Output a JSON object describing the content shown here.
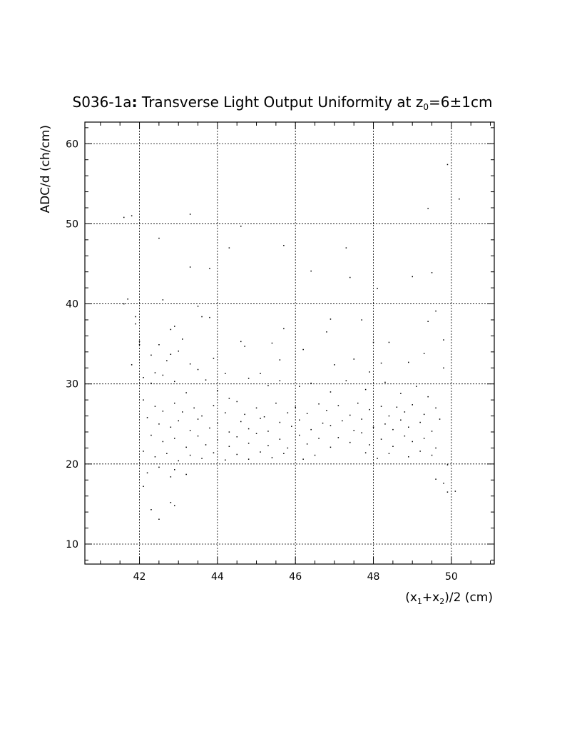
{
  "chart_data": {
    "type": "scatter",
    "title": "S036-1a: Transverse Light Output Uniformity at z0=6±1cm",
    "title_parts": {
      "prefix": "S036-1a",
      "colon": ":",
      "text": " Transverse Light Output Uniformity at z",
      "sub": "0",
      "suffix": "=6±1cm"
    },
    "xlabel": "(x1+x2)/2 (cm)",
    "xlabel_parts": {
      "open": "(x",
      "sub1": "1",
      "plus": "+x",
      "sub2": "2",
      "close": ")/2 (cm)"
    },
    "ylabel": "ADC/d (ch/cm)",
    "xlim": [
      40.6,
      51.1
    ],
    "ylim": [
      7.5,
      62.7
    ],
    "x_ticks": [
      42,
      44,
      46,
      48,
      50
    ],
    "y_ticks": [
      10,
      20,
      30,
      40,
      50,
      60
    ],
    "x_tick_labels": [
      "42",
      "44",
      "46",
      "48",
      "50"
    ],
    "y_tick_labels": [
      "10",
      "20",
      "30",
      "40",
      "50",
      "60"
    ],
    "grid": true,
    "points": [
      [
        41.6,
        50.8
      ],
      [
        41.8,
        51.0
      ],
      [
        43.3,
        51.2
      ],
      [
        42.5,
        48.2
      ],
      [
        44.6,
        49.7
      ],
      [
        45.7,
        47.3
      ],
      [
        47.3,
        47.0
      ],
      [
        44.3,
        47.0
      ],
      [
        43.3,
        44.6
      ],
      [
        43.8,
        44.4
      ],
      [
        47.4,
        43.3
      ],
      [
        49.5,
        43.9
      ],
      [
        49.0,
        43.4
      ],
      [
        48.1,
        41.9
      ],
      [
        41.6,
        40.0
      ],
      [
        41.7,
        40.6
      ],
      [
        42.6,
        40.5
      ],
      [
        43.5,
        39.7
      ],
      [
        41.9,
        38.4
      ],
      [
        43.6,
        38.4
      ],
      [
        43.8,
        38.3
      ],
      [
        46.9,
        38.1
      ],
      [
        47.7,
        38.0
      ],
      [
        49.6,
        39.1
      ],
      [
        49.4,
        37.8
      ],
      [
        41.9,
        37.5
      ],
      [
        42.8,
        36.8
      ],
      [
        42.9,
        37.2
      ],
      [
        45.7,
        36.9
      ],
      [
        49.8,
        35.5
      ],
      [
        42.0,
        35.3
      ],
      [
        44.6,
        35.3
      ],
      [
        42.5,
        34.9
      ],
      [
        43.1,
        35.6
      ],
      [
        45.4,
        35.1
      ],
      [
        46.8,
        36.5
      ],
      [
        48.0,
        35.2
      ],
      [
        48.4,
        35.2
      ],
      [
        43.0,
        34.1
      ],
      [
        42.8,
        33.7
      ],
      [
        44.7,
        34.7
      ],
      [
        42.0,
        34.9
      ],
      [
        41.8,
        32.4
      ],
      [
        42.3,
        33.6
      ],
      [
        42.4,
        31.4
      ],
      [
        42.7,
        32.9
      ],
      [
        43.3,
        32.5
      ],
      [
        43.5,
        31.8
      ],
      [
        43.9,
        33.2
      ],
      [
        44.2,
        31.3
      ],
      [
        45.1,
        31.3
      ],
      [
        45.6,
        33.0
      ],
      [
        46.2,
        34.3
      ],
      [
        47.0,
        32.4
      ],
      [
        47.5,
        33.1
      ],
      [
        47.9,
        31.5
      ],
      [
        48.2,
        32.6
      ],
      [
        48.9,
        32.7
      ],
      [
        49.3,
        33.8
      ],
      [
        49.8,
        32.0
      ],
      [
        42.1,
        30.8
      ],
      [
        42.3,
        30.1
      ],
      [
        42.6,
        31.1
      ],
      [
        42.9,
        30.3
      ],
      [
        43.2,
        28.9
      ],
      [
        43.7,
        30.5
      ],
      [
        44.0,
        29.2
      ],
      [
        44.3,
        28.2
      ],
      [
        44.8,
        30.7
      ],
      [
        45.3,
        29.8
      ],
      [
        45.6,
        30.4
      ],
      [
        46.1,
        29.7
      ],
      [
        46.4,
        30.1
      ],
      [
        46.9,
        29.0
      ],
      [
        47.3,
        30.4
      ],
      [
        47.8,
        29.3
      ],
      [
        48.3,
        30.2
      ],
      [
        48.7,
        28.8
      ],
      [
        49.1,
        29.7
      ],
      [
        49.4,
        28.4
      ],
      [
        42.1,
        28.0
      ],
      [
        42.4,
        27.2
      ],
      [
        42.6,
        26.6
      ],
      [
        42.9,
        27.6
      ],
      [
        43.1,
        26.5
      ],
      [
        43.4,
        27.0
      ],
      [
        43.6,
        26.0
      ],
      [
        43.9,
        27.3
      ],
      [
        44.2,
        26.4
      ],
      [
        44.5,
        27.8
      ],
      [
        44.7,
        26.2
      ],
      [
        45.0,
        27.0
      ],
      [
        45.2,
        25.9
      ],
      [
        45.5,
        27.6
      ],
      [
        45.8,
        26.4
      ],
      [
        46.0,
        27.1
      ],
      [
        46.3,
        26.3
      ],
      [
        46.6,
        27.5
      ],
      [
        46.8,
        26.7
      ],
      [
        47.1,
        27.3
      ],
      [
        47.4,
        26.1
      ],
      [
        47.6,
        27.6
      ],
      [
        47.9,
        26.8
      ],
      [
        48.2,
        27.2
      ],
      [
        48.4,
        26.0
      ],
      [
        48.6,
        27.1
      ],
      [
        48.8,
        26.5
      ],
      [
        49.0,
        27.4
      ],
      [
        49.3,
        26.2
      ],
      [
        49.6,
        27.0
      ],
      [
        42.2,
        25.8
      ],
      [
        42.5,
        25.0
      ],
      [
        42.8,
        24.6
      ],
      [
        43.0,
        25.4
      ],
      [
        43.3,
        24.2
      ],
      [
        43.5,
        25.6
      ],
      [
        43.8,
        24.5
      ],
      [
        44.0,
        25.1
      ],
      [
        44.3,
        24.0
      ],
      [
        44.6,
        25.3
      ],
      [
        44.8,
        24.4
      ],
      [
        45.1,
        25.7
      ],
      [
        45.3,
        24.1
      ],
      [
        45.6,
        25.2
      ],
      [
        45.9,
        24.7
      ],
      [
        46.1,
        25.5
      ],
      [
        46.4,
        24.3
      ],
      [
        46.7,
        25.1
      ],
      [
        46.9,
        24.8
      ],
      [
        47.2,
        25.4
      ],
      [
        47.5,
        24.2
      ],
      [
        47.7,
        25.6
      ],
      [
        48.0,
        24.6
      ],
      [
        48.3,
        25.0
      ],
      [
        48.5,
        24.3
      ],
      [
        48.7,
        25.5
      ],
      [
        48.9,
        24.6
      ],
      [
        49.2,
        25.2
      ],
      [
        49.5,
        24.1
      ],
      [
        49.7,
        25.6
      ],
      [
        42.3,
        23.6
      ],
      [
        42.6,
        22.8
      ],
      [
        42.9,
        23.2
      ],
      [
        43.2,
        22.1
      ],
      [
        43.5,
        23.5
      ],
      [
        43.7,
        22.4
      ],
      [
        44.0,
        23.0
      ],
      [
        44.3,
        22.2
      ],
      [
        44.5,
        23.4
      ],
      [
        44.8,
        22.6
      ],
      [
        45.0,
        23.8
      ],
      [
        45.3,
        22.3
      ],
      [
        45.6,
        23.1
      ],
      [
        45.8,
        22.0
      ],
      [
        46.1,
        23.6
      ],
      [
        46.3,
        22.5
      ],
      [
        46.6,
        23.2
      ],
      [
        46.9,
        22.1
      ],
      [
        47.1,
        23.3
      ],
      [
        47.4,
        22.7
      ],
      [
        47.7,
        23.9
      ],
      [
        47.9,
        22.4
      ],
      [
        48.2,
        23.1
      ],
      [
        48.5,
        22.2
      ],
      [
        48.8,
        23.5
      ],
      [
        49.0,
        22.8
      ],
      [
        49.3,
        23.2
      ],
      [
        49.6,
        22.0
      ],
      [
        42.1,
        21.6
      ],
      [
        42.4,
        20.9
      ],
      [
        42.7,
        21.3
      ],
      [
        43.0,
        20.4
      ],
      [
        43.3,
        21.1
      ],
      [
        43.6,
        20.7
      ],
      [
        43.9,
        21.4
      ],
      [
        44.2,
        20.5
      ],
      [
        44.5,
        21.2
      ],
      [
        44.8,
        20.6
      ],
      [
        45.1,
        21.5
      ],
      [
        45.4,
        20.8
      ],
      [
        45.7,
        21.3
      ],
      [
        46.2,
        20.6
      ],
      [
        46.5,
        21.1
      ],
      [
        47.8,
        21.4
      ],
      [
        48.1,
        20.7
      ],
      [
        48.4,
        21.3
      ],
      [
        48.9,
        20.9
      ],
      [
        49.2,
        21.6
      ],
      [
        49.5,
        21.1
      ],
      [
        42.2,
        18.9
      ],
      [
        42.5,
        19.6
      ],
      [
        42.8,
        18.4
      ],
      [
        42.9,
        19.3
      ],
      [
        43.2,
        18.7
      ],
      [
        49.6,
        18.1
      ],
      [
        49.8,
        17.6
      ],
      [
        49.9,
        19.9
      ],
      [
        42.1,
        17.2
      ],
      [
        49.9,
        16.5
      ],
      [
        50.1,
        16.6
      ],
      [
        42.8,
        15.2
      ],
      [
        42.9,
        14.8
      ],
      [
        42.3,
        14.3
      ],
      [
        42.5,
        13.1
      ],
      [
        49.9,
        57.4
      ],
      [
        50.2,
        53.1
      ],
      [
        49.4,
        51.9
      ],
      [
        46.4,
        44.1
      ]
    ]
  }
}
